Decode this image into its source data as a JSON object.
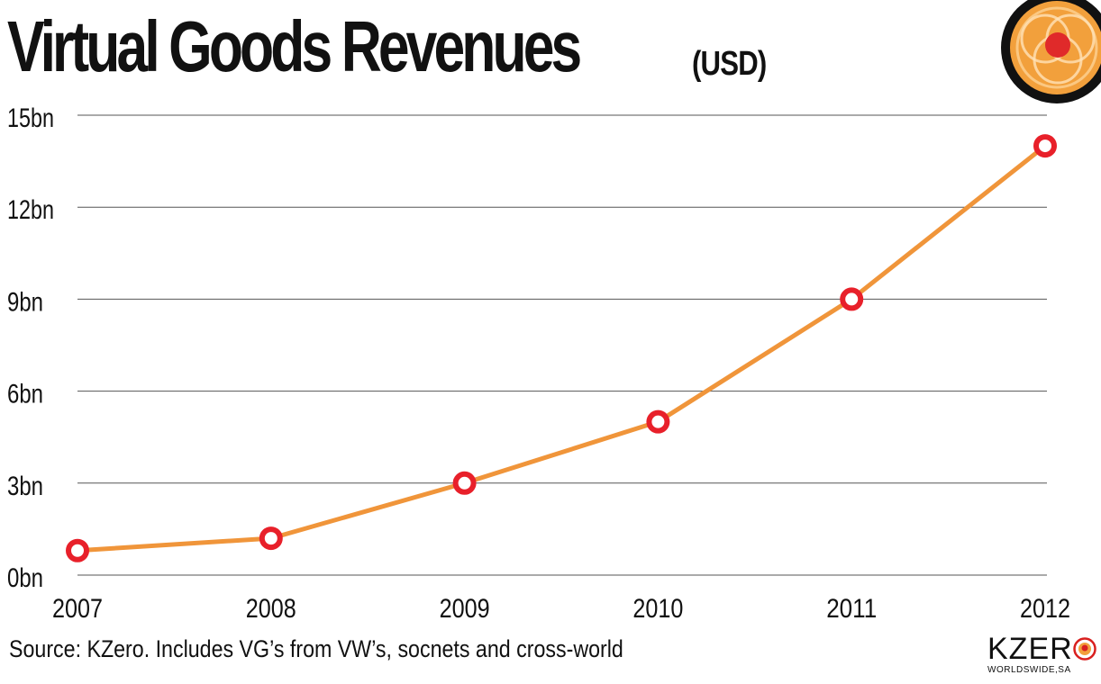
{
  "title": {
    "main": "Virtual Goods Revenues",
    "unit": "(USD)"
  },
  "chart_data": {
    "type": "line",
    "title": "Virtual Goods Revenues (USD)",
    "xlabel": "",
    "ylabel": "",
    "categories": [
      "2007",
      "2008",
      "2009",
      "2010",
      "2011",
      "2012"
    ],
    "y_ticks": [
      {
        "value": 0,
        "label": "0bn"
      },
      {
        "value": 3,
        "label": "3bn"
      },
      {
        "value": 6,
        "label": "6bn"
      },
      {
        "value": 9,
        "label": "9bn"
      },
      {
        "value": 12,
        "label": "12bn"
      },
      {
        "value": 15,
        "label": "15bn"
      }
    ],
    "ylim": [
      0,
      15
    ],
    "grid": "horizontal",
    "legend": "none",
    "series": [
      {
        "values": [
          0.8,
          1.2,
          3,
          5,
          9,
          14
        ],
        "line_color": "#f0953a",
        "marker_color": "#e8202a"
      }
    ]
  },
  "footer": {
    "source": "Source: KZero. Includes VG’s from VW’s, socnets and cross-world",
    "brand_name_prefix": "KZER",
    "brand_subtitle": "WORLDSWIDE,SA"
  },
  "colors": {
    "line": "#f0953a",
    "marker": "#e8202a",
    "grid": "#555555",
    "text": "#111111"
  }
}
